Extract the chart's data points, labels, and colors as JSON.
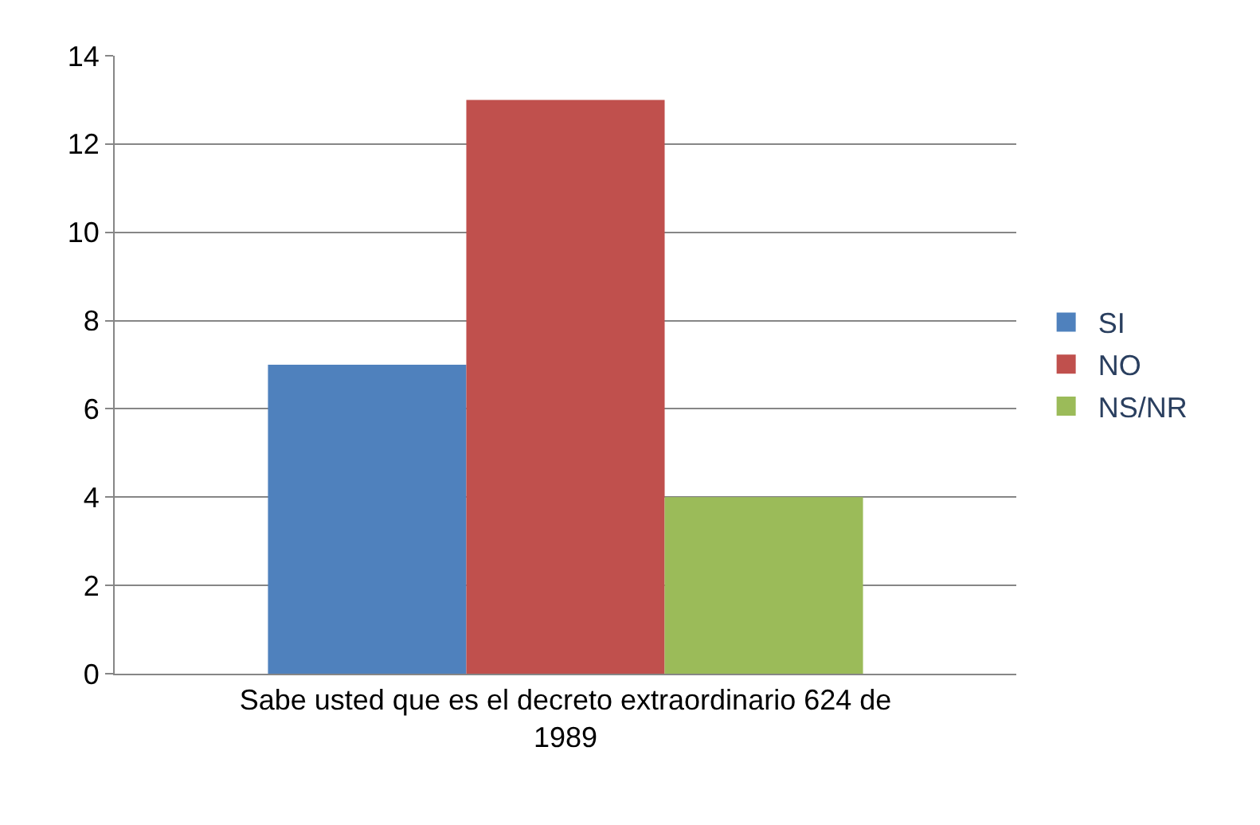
{
  "chart_data": {
    "type": "bar",
    "categories": [
      "Sabe usted que es el decreto extraordinario 624 de 1989"
    ],
    "series": [
      {
        "name": "SI",
        "color": "#4f81bd",
        "values": [
          7
        ]
      },
      {
        "name": "NO",
        "color": "#c0504d",
        "values": [
          13
        ]
      },
      {
        "name": "NS/NR",
        "color": "#9bbb59",
        "values": [
          4
        ]
      }
    ],
    "ylim": [
      0,
      14
    ],
    "yticks": [
      0,
      2,
      4,
      6,
      8,
      10,
      12,
      14
    ],
    "grid": "y",
    "legend": "right"
  }
}
